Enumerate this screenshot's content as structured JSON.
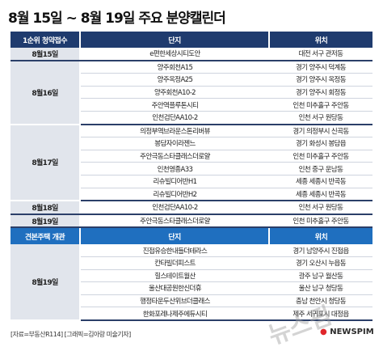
{
  "title": "8월 15일 ~ 8월 19일 주요 분양캘린더",
  "section1": {
    "headers": [
      "1순위 청약접수",
      "단지",
      "위치"
    ],
    "groups": [
      {
        "date": "8월15일",
        "rows": [
          {
            "complex": "e편한세상시티도안",
            "location": "대전 서구 관저동"
          }
        ]
      },
      {
        "date": "8월16일",
        "rows": [
          {
            "complex": "양주회천A15",
            "location": "경기 양주시 덕계동"
          },
          {
            "complex": "양주옥정A25",
            "location": "경기 양주시 옥정동"
          },
          {
            "complex": "양주회천A10-2",
            "location": "경기 양주시 회정동"
          },
          {
            "complex": "주안역플루톤시티",
            "location": "인천 미추홀구 주안동"
          },
          {
            "complex": "인천검단AA10-2",
            "location": "인천 서구 원당동"
          }
        ]
      },
      {
        "date": "8월17일",
        "rows": [
          {
            "complex": "의정부역브라운스톤리버뷰",
            "location": "경기 의정부시 신곡동"
          },
          {
            "complex": "봉담자이라젠느",
            "location": "경기 화성시 봉담읍"
          },
          {
            "complex": "주안극동스타클래스더로얄",
            "location": "인천 미추홀구 주안동"
          },
          {
            "complex": "인천영종A33",
            "location": "인천 중구 운남동"
          },
          {
            "complex": "리슈빌디어반H1",
            "location": "세종 세종시 반곡동"
          },
          {
            "complex": "리슈빌디어반H2",
            "location": "세종 세종시 반곡동"
          }
        ]
      },
      {
        "date": "8월18일",
        "rows": [
          {
            "complex": "인천검단AA10-2",
            "location": "인천 서구 원당동"
          }
        ]
      },
      {
        "date": "8월19일",
        "rows": [
          {
            "complex": "주안극동스타클래스더로얄",
            "location": "인천 미추홀구 주안동"
          }
        ]
      }
    ]
  },
  "section2": {
    "headers": [
      "견본주택 개관",
      "단지",
      "위치"
    ],
    "groups": [
      {
        "date": "8월19일",
        "rows": [
          {
            "complex": "진접유승한내들더테라스",
            "location": "경기 남양주시 진접읍"
          },
          {
            "complex": "칸타빌더피스트",
            "location": "경기 오산시 누읍동"
          },
          {
            "complex": "힐스테이트월산",
            "location": "광주 남구 월산동"
          },
          {
            "complex": "울산대공원한신더휴",
            "location": "울산 남구 청당동"
          },
          {
            "complex": "행정타운두산위브더클래스",
            "location": "충남 천안시 청당동"
          },
          {
            "complex": "한화포레나제주에듀시티",
            "location": "제주 서귀포시 대정읍"
          }
        ]
      }
    ]
  },
  "footer": "[자료=부동산R114] [그래픽=김아랑 미술기자]",
  "logo": {
    "text": "NEWSPIM",
    "accent": "#e0262b"
  },
  "watermark": "뉴스핌",
  "colors": {
    "header": "#1f3b6e",
    "header2": "#1f6fbf",
    "date_cell": "#e1e5ec",
    "group_line": "#2b3f69"
  }
}
